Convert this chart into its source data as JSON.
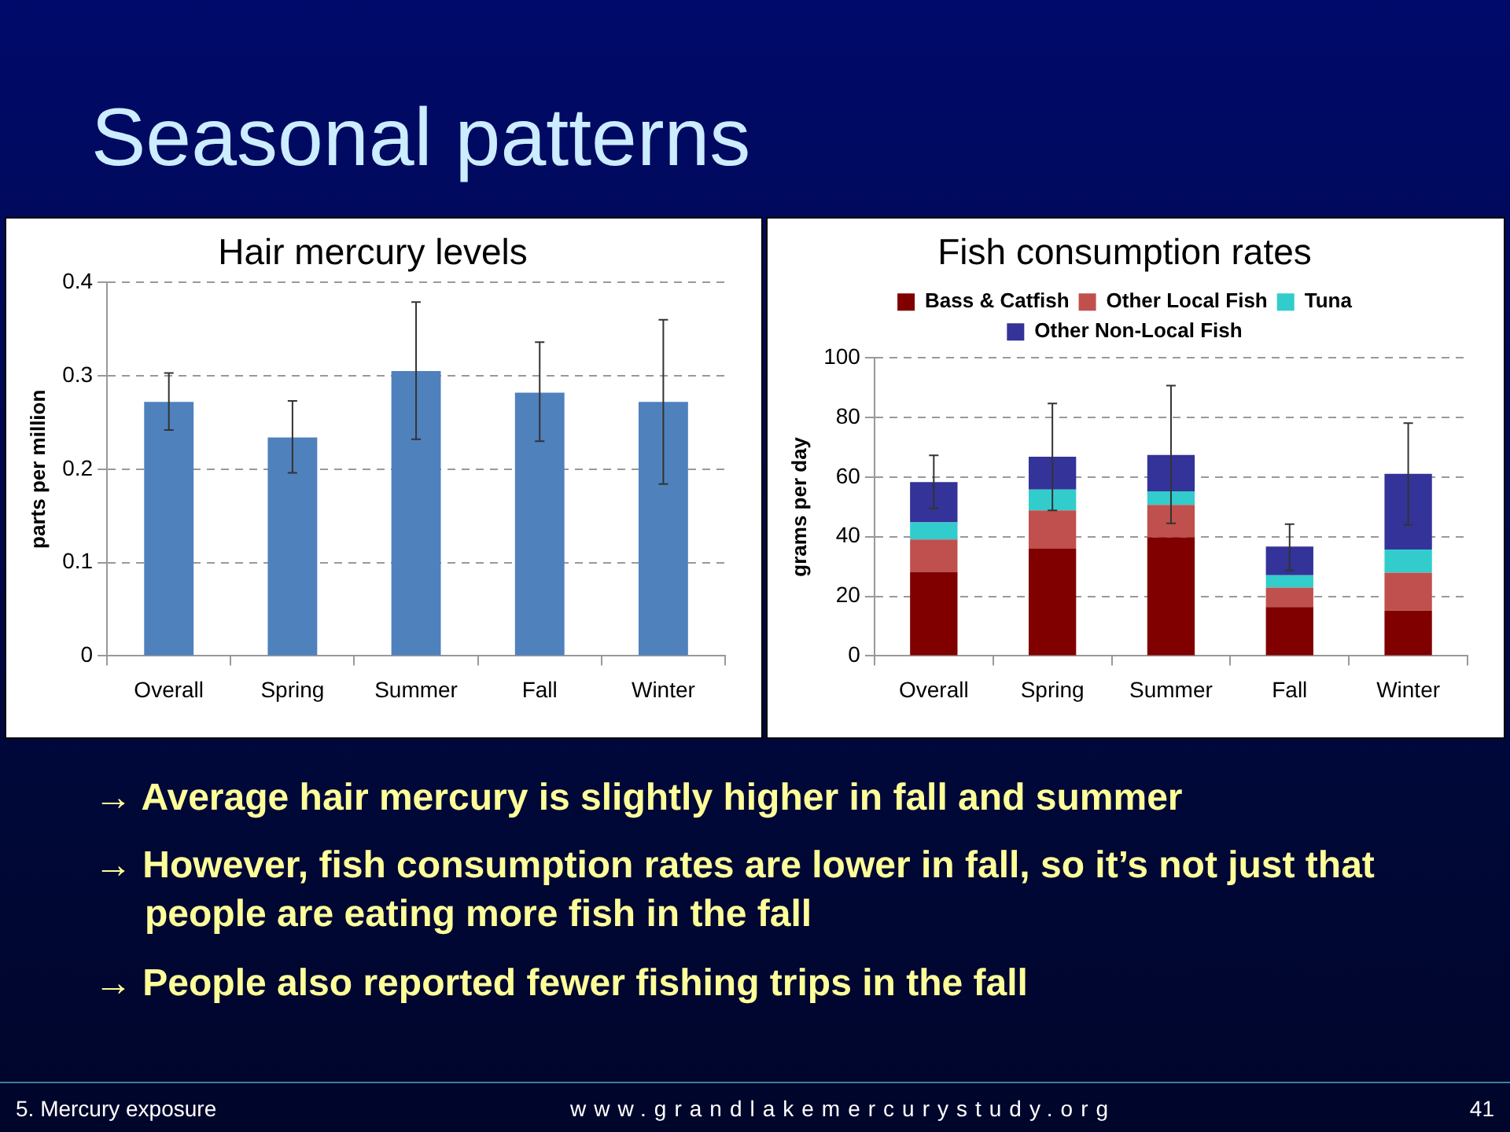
{
  "chart_data": [
    {
      "type": "other",
      "title": "Seasonal patterns"
    },
    {
      "type": "bar",
      "title": "Hair mercury levels",
      "ylabel": "parts per million",
      "categories": [
        "Overall",
        "Spring",
        "Summer",
        "Fall",
        "Winter"
      ],
      "values": [
        0.272,
        0.234,
        0.305,
        0.282,
        0.272
      ],
      "errors": [
        [
          0.242,
          0.303
        ],
        [
          0.196,
          0.273
        ],
        [
          0.232,
          0.379
        ],
        [
          0.23,
          0.336
        ],
        [
          0.184,
          0.36
        ]
      ],
      "color": "#4f81bd",
      "ylim": [
        0,
        0.4
      ],
      "yticks": [
        0,
        0.1,
        0.2,
        0.3,
        0.4
      ],
      "grid": "y"
    },
    {
      "type": "bar",
      "title": "Fish consumption rates",
      "ylabel": "grams per day",
      "categories": [
        "Overall",
        "Spring",
        "Summer",
        "Fall",
        "Winter"
      ],
      "stacked": true,
      "legend": "top",
      "ylim": [
        0,
        100
      ],
      "yticks": [
        0,
        20,
        40,
        60,
        80,
        100
      ],
      "grid": "y",
      "series": [
        {
          "name": "Bass & Catfish",
          "color": "#800000",
          "values": [
            28.2,
            36.0,
            39.8,
            16.4,
            15.2
          ]
        },
        {
          "name": "Other Local Fish",
          "color": "#c0504d",
          "values": [
            10.9,
            12.8,
            10.9,
            6.5,
            12.7
          ]
        },
        {
          "name": "Tuna",
          "color": "#33cccc",
          "values": [
            5.7,
            7.0,
            4.5,
            4.2,
            7.8
          ]
        },
        {
          "name": "Other Non-Local Fish",
          "color": "#333399",
          "values": [
            13.5,
            11.0,
            12.2,
            9.6,
            25.4
          ],
          "errors": [
            [
              49.5,
              67.3
            ],
            [
              48.8,
              84.7
            ],
            [
              44.5,
              90.7
            ],
            [
              28.7,
              44.2
            ],
            [
              44.0,
              78.1
            ]
          ]
        }
      ]
    },
    {
      "type": "other",
      "annotations": [
        "→ Average hair mercury is slightly higher in fall and summer",
        "→ However, fish consumption rates are lower in fall, so it’s not just that people are eating more fish in the fall",
        "→ People also reported fewer fishing trips in the fall"
      ]
    },
    {
      "type": "other",
      "annotations": [
        "5.  Mercury exposure",
        "www.grandlakemercurystudy.org",
        "41"
      ]
    }
  ]
}
